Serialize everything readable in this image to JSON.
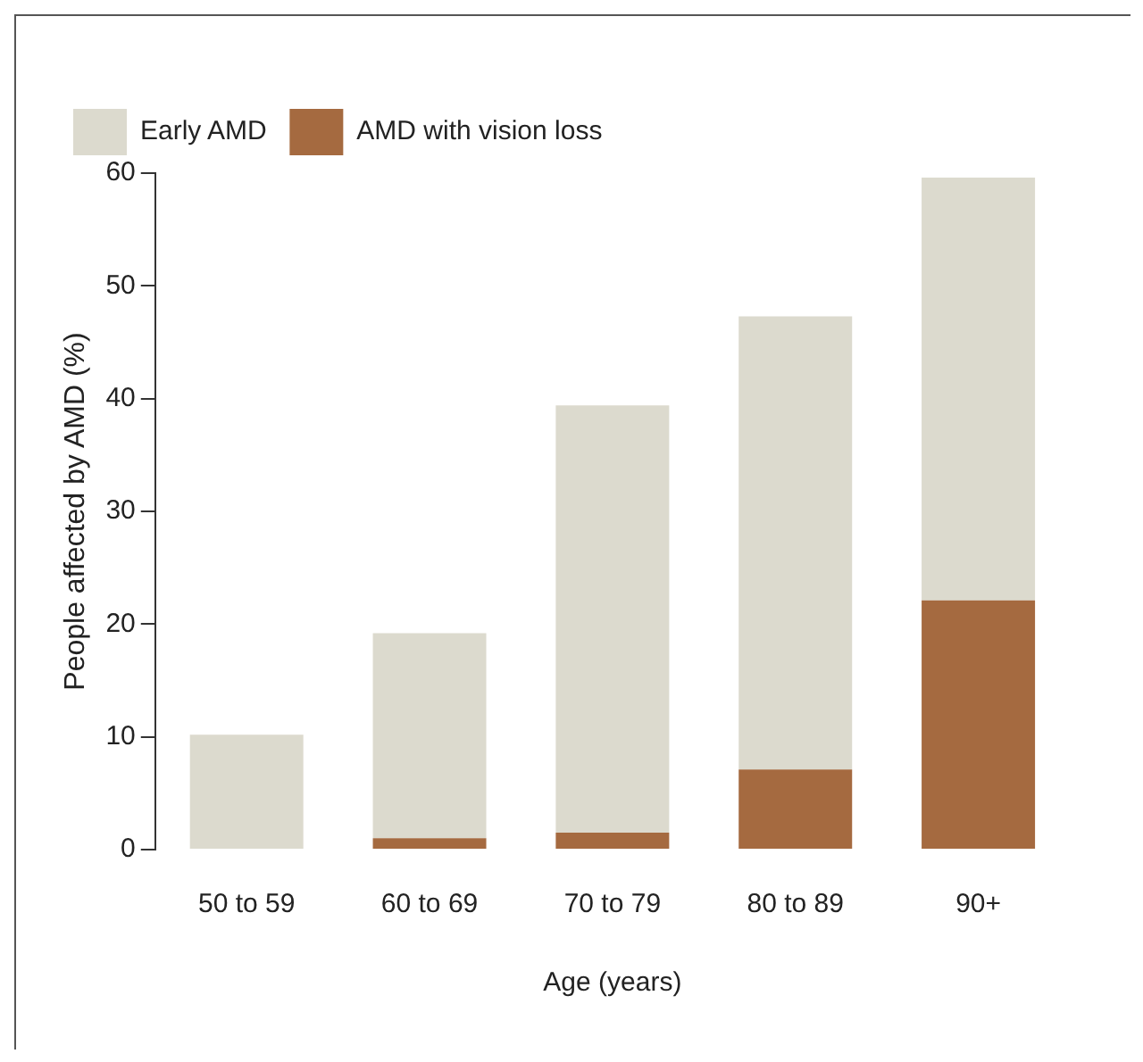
{
  "chart_data": {
    "type": "bar",
    "xlabel": "Age (years)",
    "ylabel": "People affected by AMD (%)",
    "categories": [
      "50 to 59",
      "60 to 69",
      "70 to 79",
      "80 to 89",
      "90+"
    ],
    "series": [
      {
        "name": "AMD with vision loss",
        "color": "#a56a40",
        "values": [
          0,
          1.0,
          1.5,
          7.1,
          22.1
        ]
      },
      {
        "name": "Early AMD",
        "color": "#dcdace",
        "values": [
          10.2,
          18.2,
          37.9,
          40.2,
          37.5
        ]
      }
    ],
    "stacked": true,
    "ylim": [
      0,
      60
    ],
    "yticks": [
      0,
      10,
      20,
      30,
      40,
      50,
      60
    ],
    "grid": false,
    "legend": "top left"
  }
}
